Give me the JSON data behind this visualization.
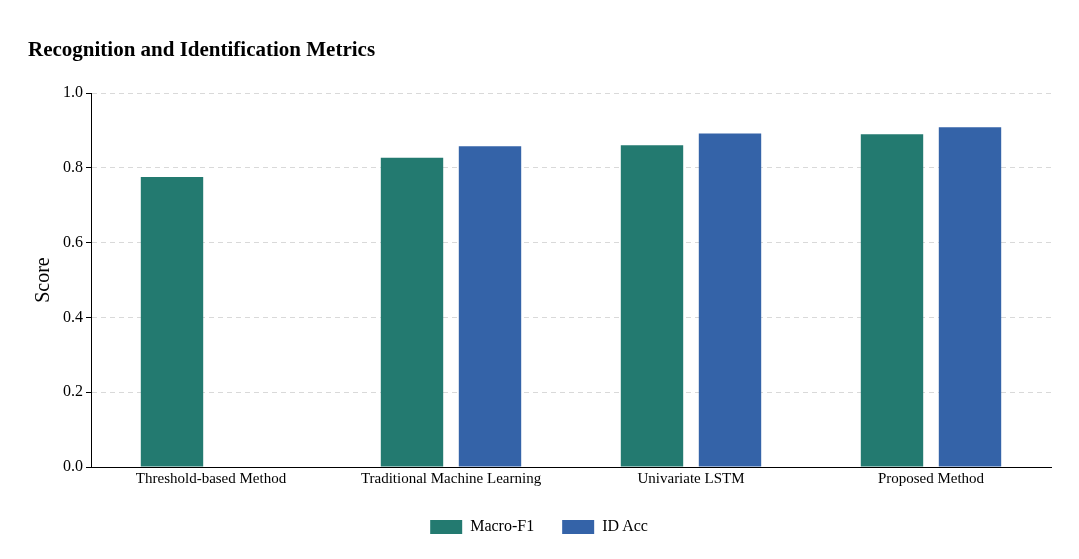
{
  "chart_data": {
    "type": "bar",
    "title": "Recognition and Identification Metrics",
    "ylabel": "Score",
    "categories": [
      "Threshold-based Method",
      "Traditional Machine Learning",
      "Univariate LSTM",
      "Proposed Method"
    ],
    "series": [
      {
        "name": "Macro-F1",
        "color": "#237a70",
        "values": [
          0.776,
          0.827,
          0.861,
          0.89
        ]
      },
      {
        "name": "ID Acc",
        "color": "#3463a8",
        "values": [
          null,
          0.858,
          0.892,
          0.909
        ]
      }
    ],
    "ylim": [
      0,
      1
    ],
    "yticks": [
      {
        "value": 0,
        "label": "0.0"
      },
      0.2,
      0.4,
      0.6,
      0.8,
      {
        "value": 1,
        "label": "1.0"
      }
    ],
    "grid": "y",
    "legend": "bottom"
  }
}
